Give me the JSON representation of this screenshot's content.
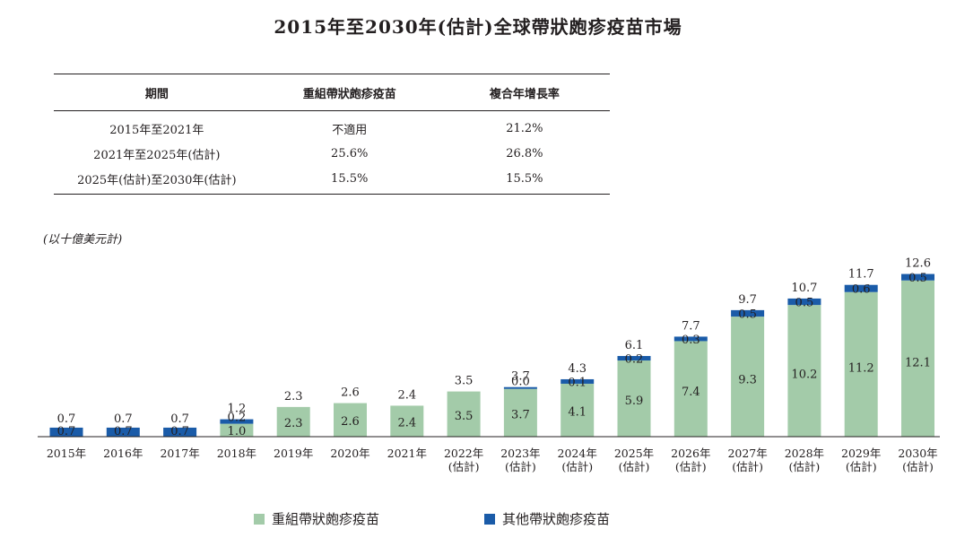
{
  "title": "2015年至2030年(估計)全球帶狀皰疹疫苗市場",
  "table": {
    "headers": [
      "期間",
      "重組帶狀皰疹疫苗",
      "複合年增長率"
    ],
    "rows": [
      [
        "2015年至2021年",
        "不適用",
        "21.2%"
      ],
      [
        "2021年至2025年(估計)",
        "25.6%",
        "26.8%"
      ],
      [
        "2025年(估計)至2030年(估計)",
        "15.5%",
        "15.5%"
      ]
    ]
  },
  "unit_label": "(以十億美元計)",
  "colors": {
    "recombinant": "#a3cba9",
    "other": "#1a5ba8"
  },
  "chart_data": {
    "type": "bar",
    "stacked": true,
    "categories": [
      [
        "2015年"
      ],
      [
        "2016年"
      ],
      [
        "2017年"
      ],
      [
        "2018年"
      ],
      [
        "2019年"
      ],
      [
        "2020年"
      ],
      [
        "2021年"
      ],
      [
        "2022年",
        "(估計)"
      ],
      [
        "2023年",
        "(估計)"
      ],
      [
        "2024年",
        "(估計)"
      ],
      [
        "2025年",
        "(估計)"
      ],
      [
        "2026年",
        "(估計)"
      ],
      [
        "2027年",
        "(估計)"
      ],
      [
        "2028年",
        "(估計)"
      ],
      [
        "2029年",
        "(估計)"
      ],
      [
        "2030年",
        "(估計)"
      ]
    ],
    "series": [
      {
        "name": "重組帶狀皰疹疫苗",
        "color": "#a3cba9",
        "values": [
          null,
          null,
          null,
          1.0,
          2.3,
          2.6,
          2.4,
          3.5,
          3.7,
          4.1,
          5.9,
          7.4,
          9.3,
          10.2,
          11.2,
          12.1
        ]
      },
      {
        "name": "其他帶狀皰疹疫苗",
        "color": "#1a5ba8",
        "values": [
          0.7,
          0.7,
          0.7,
          0.2,
          null,
          null,
          null,
          null,
          0.0,
          0.1,
          0.2,
          0.3,
          0.5,
          0.5,
          0.6,
          0.5
        ]
      }
    ],
    "totals": [
      "0.7",
      "0.7",
      "0.7",
      "1.2",
      "2.3",
      "2.6",
      "2.4",
      "3.5",
      "3.7",
      "4.3",
      "6.1",
      "7.7",
      "9.7",
      "10.7",
      "11.7",
      "12.6"
    ],
    "legend_position": "bottom"
  }
}
